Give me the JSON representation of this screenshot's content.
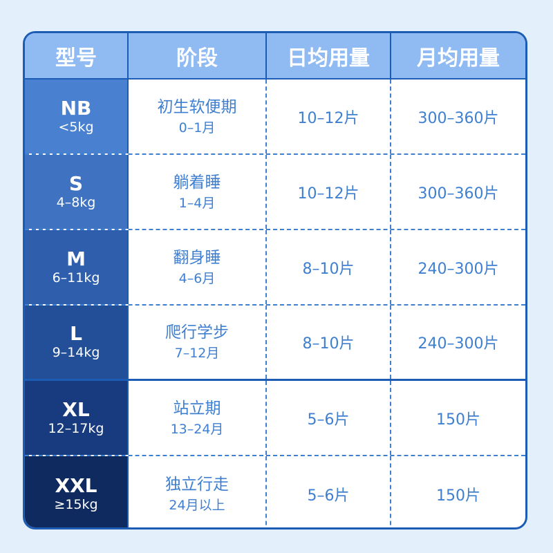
{
  "colors": {
    "border": "#1c5cb4",
    "header_bg": "#8fbaf2",
    "text": "#3f7fd0",
    "size_bgs": [
      "#4a80d0",
      "#3f72c1",
      "#2f5fac",
      "#234f98",
      "#173b7e",
      "#0f2a5e"
    ]
  },
  "headers": [
    "型号",
    "阶段",
    "日均用量",
    "月均用量"
  ],
  "rows": [
    {
      "size": "NB",
      "weight": "<5kg",
      "stage": "初生软便期",
      "age": "0–1月",
      "daily": "10–12片",
      "monthly": "300–360片"
    },
    {
      "size": "S",
      "weight": "4–8kg",
      "stage": "躺着睡",
      "age": "1–4月",
      "daily": "10–12片",
      "monthly": "300–360片"
    },
    {
      "size": "M",
      "weight": "6–11kg",
      "stage": "翻身睡",
      "age": "4–6月",
      "daily": "8–10片",
      "monthly": "240–300片"
    },
    {
      "size": "L",
      "weight": "9–14kg",
      "stage": "爬行学步",
      "age": "7–12月",
      "daily": "8–10片",
      "monthly": "240–300片"
    },
    {
      "size": "XL",
      "weight": "12–17kg",
      "stage": "站立期",
      "age": "13–24月",
      "daily": "5–6片",
      "monthly": "150片"
    },
    {
      "size": "XXL",
      "weight": "≥15kg",
      "stage": "独立行走",
      "age": "24月以上",
      "daily": "5–6片",
      "monthly": "150片"
    }
  ]
}
